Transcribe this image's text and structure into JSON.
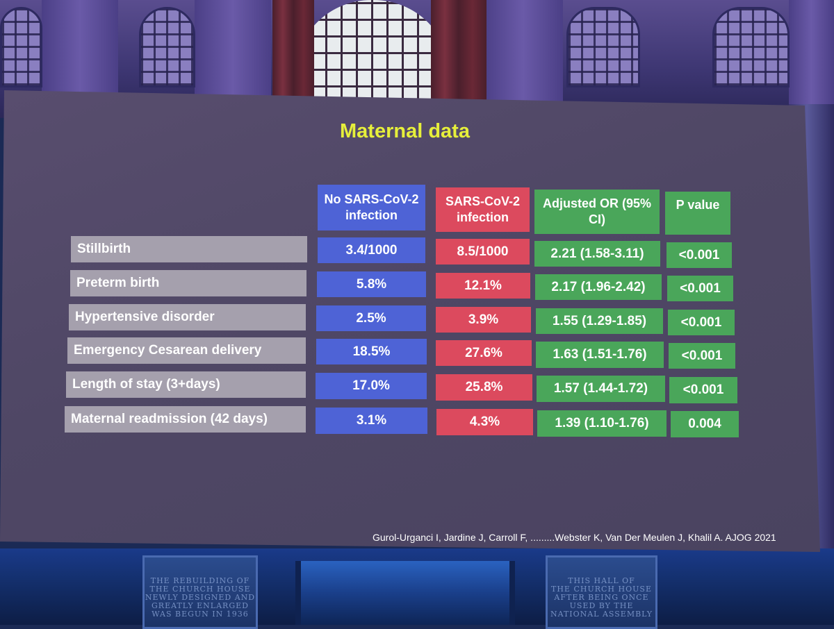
{
  "slide": {
    "title": "Maternal data",
    "headers": {
      "no_infection": "No SARS-CoV-2 infection",
      "infection": "SARS-CoV-2 infection",
      "adjusted_or": "Adjusted OR (95% CI)",
      "p_value": "P value"
    },
    "rows": [
      {
        "label": "Stillbirth",
        "no_infection": "3.4/1000",
        "infection": "8.5/1000",
        "adjusted_or": "2.21 (1.58-3.11)",
        "p_value": "<0.001"
      },
      {
        "label": "Preterm birth",
        "no_infection": "5.8%",
        "infection": "12.1%",
        "adjusted_or": "2.17 (1.96-2.42)",
        "p_value": "<0.001"
      },
      {
        "label": "Hypertensive disorder",
        "no_infection": "2.5%",
        "infection": "3.9%",
        "adjusted_or": "1.55 (1.29-1.85)",
        "p_value": "<0.001"
      },
      {
        "label": "Emergency Cesarean delivery",
        "no_infection": "18.5%",
        "infection": "27.6%",
        "adjusted_or": "1.63 (1.51-1.76)",
        "p_value": "<0.001"
      },
      {
        "label": "Length of stay (3+days)",
        "no_infection": "17.0%",
        "infection": "25.8%",
        "adjusted_or": "1.57 (1.44-1.72)",
        "p_value": "<0.001"
      },
      {
        "label": "Maternal readmission (42 days)",
        "no_infection": "3.1%",
        "infection": "4.3%",
        "adjusted_or": "1.39 (1.10-1.76)",
        "p_value": "0.004"
      }
    ],
    "citation": "Gurol-Urganci I, Jardine J, Carroll F, .........Webster K, Van Der Meulen J, Khalil A. AJOG 2021"
  },
  "room": {
    "plaque_left": "THE REBUILDING OF\nTHE CHURCH HOUSE\nNEWLY DESIGNED AND\nGREATLY ENLARGED\nWAS BEGUN IN 1936",
    "plaque_right": "THIS HALL OF\nTHE CHURCH HOUSE\nAFTER BEING ONCE\nUSED BY THE\nNATIONAL ASSEMBLY"
  },
  "colors": {
    "title": "#e6ef3b",
    "no_infection": "#4e63d6",
    "infection": "#dc4a5e",
    "adjusted_or": "#4aa65a",
    "row_label": "#a5a0ad",
    "slide_bg": "#514966"
  }
}
